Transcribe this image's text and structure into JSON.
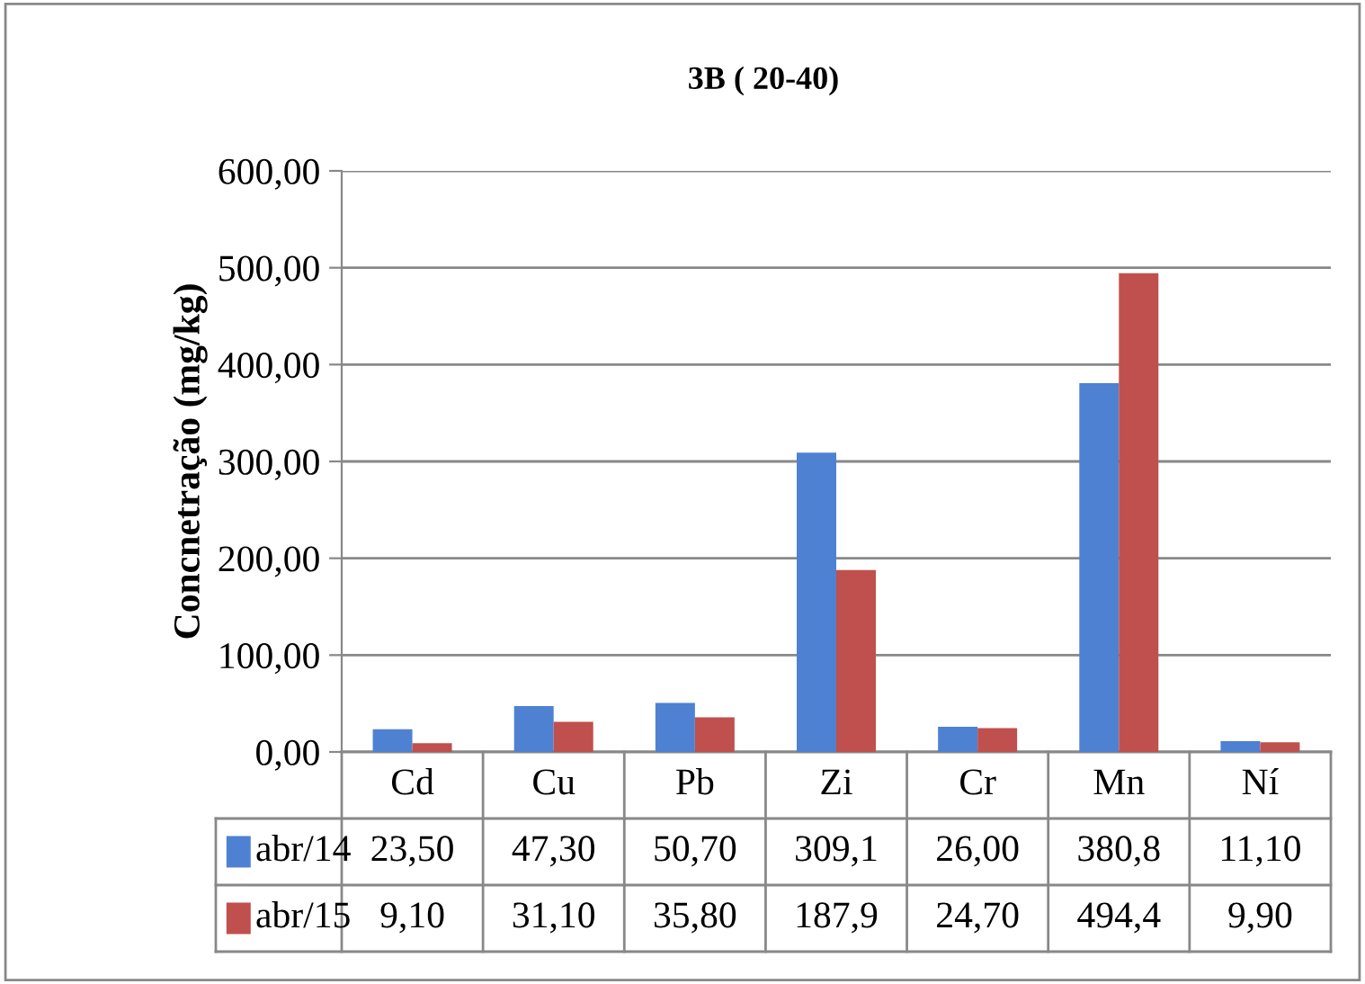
{
  "chart_data": {
    "type": "bar",
    "title": "3B ( 20-40)",
    "ylabel": "Concnetração (mg/kg)",
    "categories": [
      "Cd",
      "Cu",
      "Pb",
      "Zi",
      "Cr",
      "Mn",
      "Ní"
    ],
    "series": [
      {
        "name": "abr/14",
        "color": "#4f81d3",
        "values": [
          23.5,
          47.3,
          50.7,
          309.1,
          26.0,
          380.8,
          11.1
        ],
        "value_labels": [
          "23,50",
          "47,30",
          "50,70",
          "309,1",
          "26,00",
          "380,8",
          "11,10"
        ]
      },
      {
        "name": "abr/15",
        "color": "#c0504d",
        "values": [
          9.1,
          31.1,
          35.8,
          187.9,
          24.7,
          494.4,
          9.9
        ],
        "value_labels": [
          "9,10",
          "31,10",
          "35,80",
          "187,9",
          "24,70",
          "494,4",
          "9,90"
        ]
      }
    ],
    "ylim": [
      0,
      600
    ],
    "yticks": [
      {
        "value": 0,
        "label": "0,00"
      },
      {
        "value": 100,
        "label": "100,00"
      },
      {
        "value": 200,
        "label": "200,00"
      },
      {
        "value": 300,
        "label": "300,00"
      },
      {
        "value": 400,
        "label": "400,00"
      },
      {
        "value": 500,
        "label": "500,00"
      },
      {
        "value": 600,
        "label": "600,00"
      }
    ],
    "grid": "y",
    "legend": "bottom"
  }
}
